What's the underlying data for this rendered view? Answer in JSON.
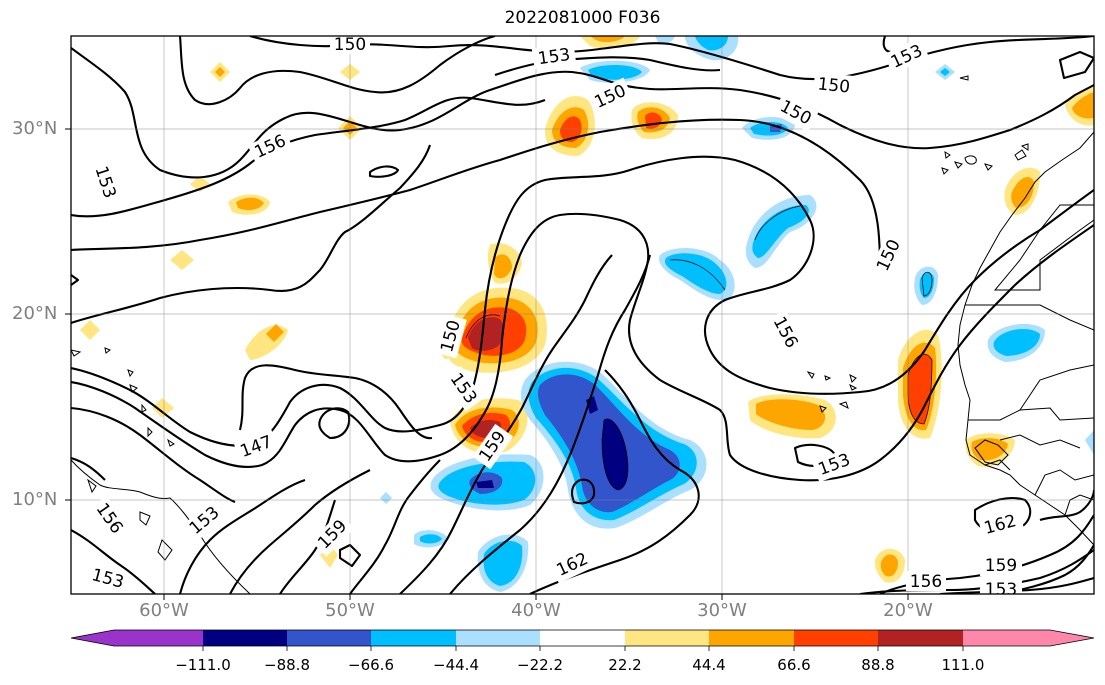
{
  "title": "2022081000 F036",
  "lat_labels": [
    "30°N",
    "20°N",
    "10°N"
  ],
  "lon_labels": [
    "60°W",
    "50°W",
    "40°W",
    "30°W",
    "20°W"
  ],
  "colorbar": {
    "ticks": [
      "−111.0",
      "−88.8",
      "−66.6",
      "−44.4",
      "−22.2",
      "22.2",
      "44.4",
      "66.6",
      "88.8",
      "111.0"
    ],
    "colors": [
      "#9933cc",
      "#000080",
      "#3355cc",
      "#00bfff",
      "#aadfff",
      "#ffffff",
      "#ffe680",
      "#ffa500",
      "#ff4000",
      "#b22222",
      "#ff88aa"
    ]
  },
  "contour_labels": {
    "c1": "150",
    "c2": "153",
    "c3": "150",
    "c4": "150",
    "c5": "153",
    "c6": "150",
    "c7": "156",
    "c8": "153",
    "c9": "150",
    "c10": "150",
    "c11": "156",
    "c12": "153",
    "c13": "147",
    "c14": "159",
    "c15": "156",
    "c16": "153",
    "c17": "153",
    "c18": "159",
    "c19": "162",
    "c20": "153",
    "c21": "162",
    "c22": "159",
    "c23": "156",
    "c24": "153"
  }
}
